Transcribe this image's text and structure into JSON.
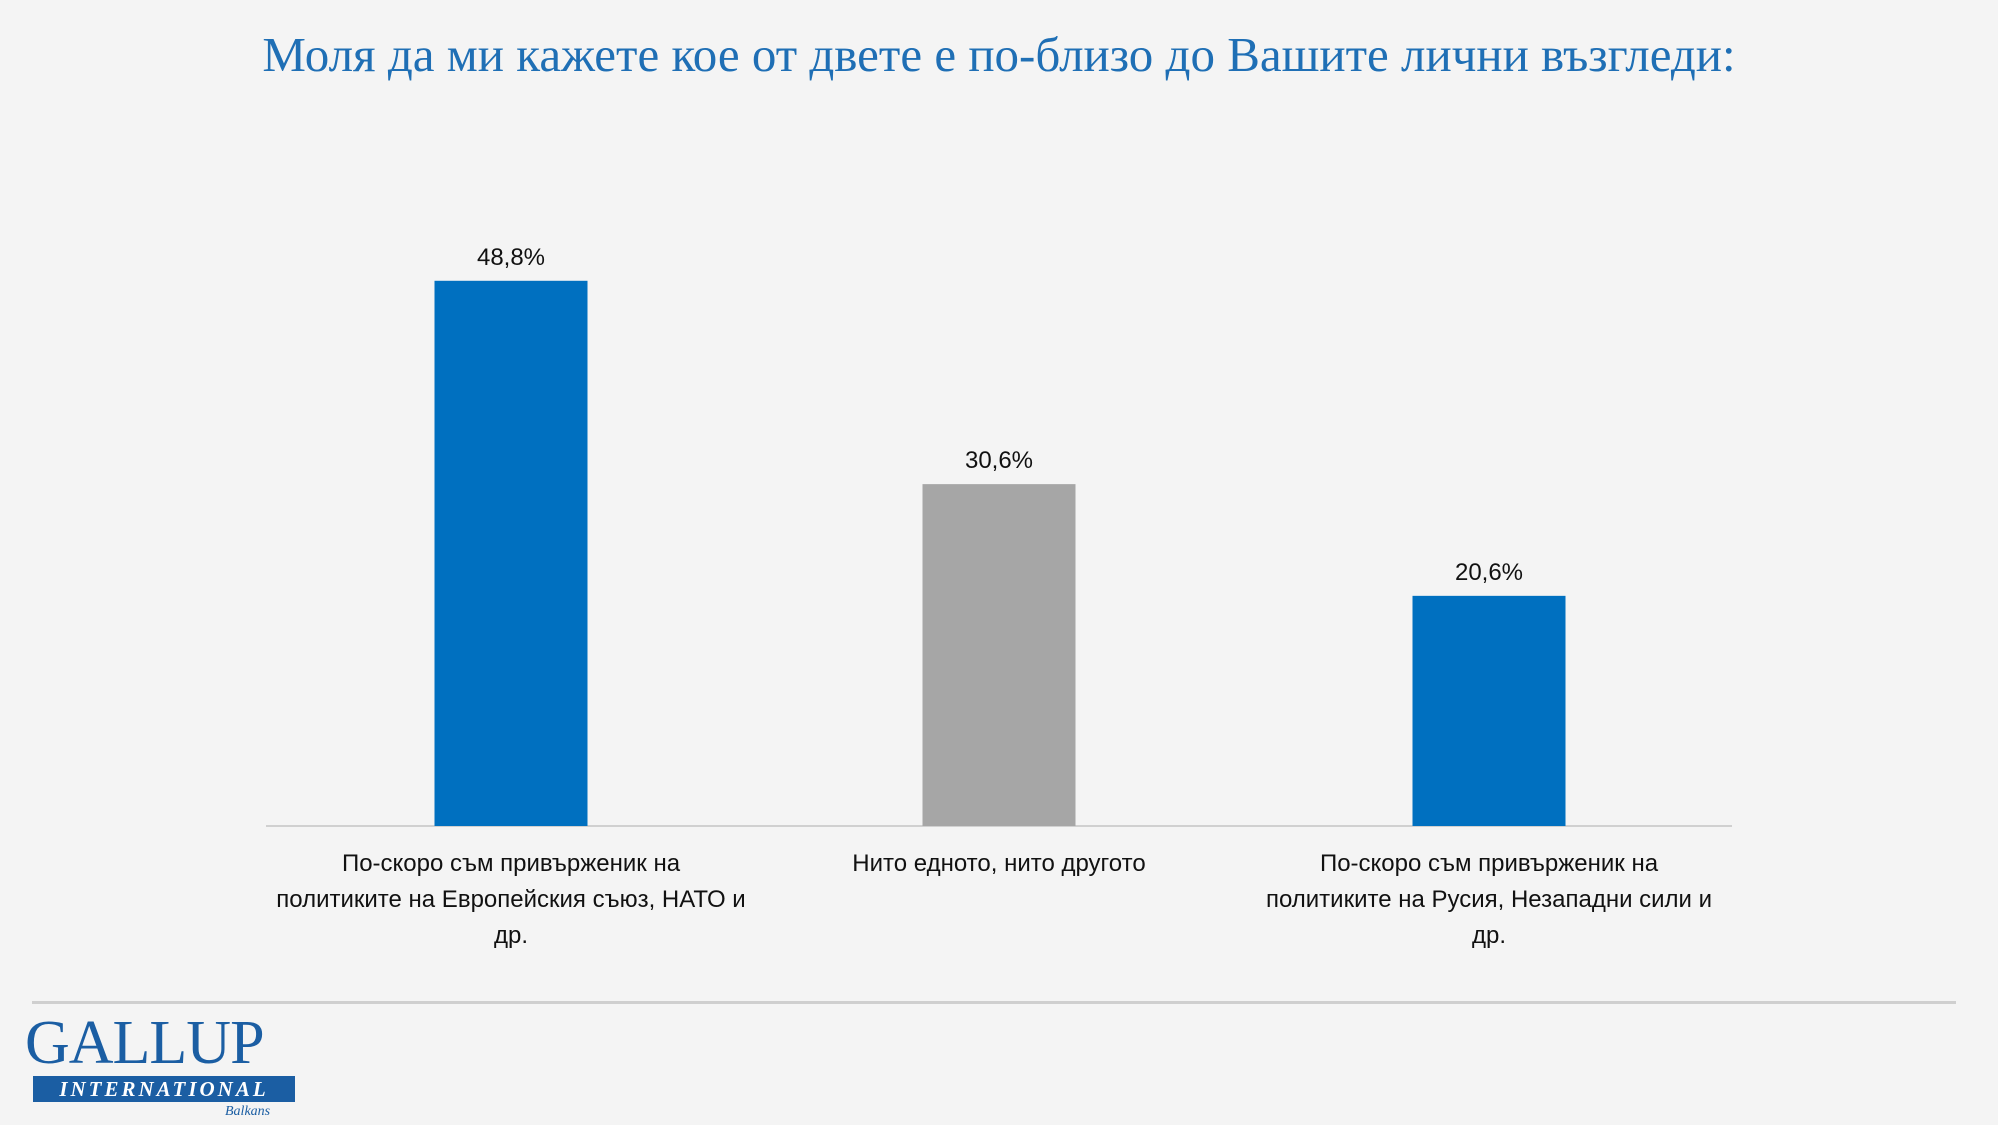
{
  "chart_data": {
    "type": "bar",
    "title": "Моля да ми кажете кое от двете е по-близо до Вашите лични възгледи:",
    "categories": [
      "По-скоро съм привърженик на политиките на Европейския съюз, НАТО и др.",
      "Нито едното, нито другото",
      "По-скоро съм привърженик на политиките на Русия, Незападни сили и др."
    ],
    "values": [
      48.8,
      30.6,
      20.6
    ],
    "value_labels": [
      "48,8%",
      "30,6%",
      "20,6%"
    ],
    "colors": [
      "#0070c0",
      "#a6a6a6",
      "#0070c0"
    ],
    "ylim": [
      0,
      58
    ],
    "grid": false,
    "legend": "none"
  },
  "logo": {
    "main": "GALLUP",
    "band": "INTERNATIONAL",
    "sub": "Balkans"
  }
}
